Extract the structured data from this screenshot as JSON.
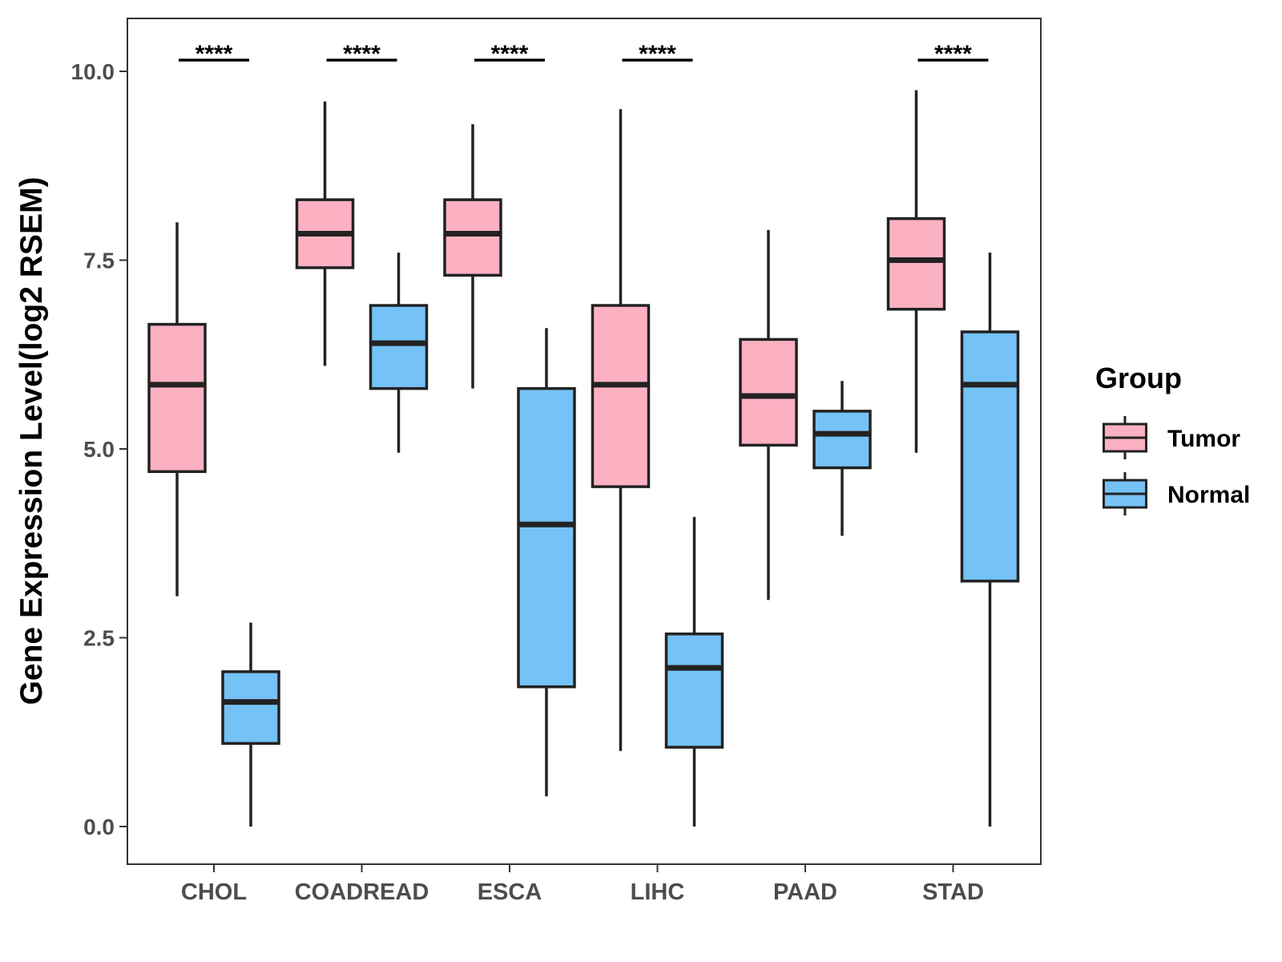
{
  "chart_data": {
    "type": "boxplot",
    "title": "",
    "xlabel": "",
    "ylabel": "Gene Expression Level(log2 RSEM)",
    "ylim": [
      -0.5,
      10.7
    ],
    "yticks": [
      0.0,
      2.5,
      5.0,
      7.5,
      10.0
    ],
    "ytick_labels": [
      "0.0",
      "2.5",
      "5.0",
      "7.5",
      "10.0"
    ],
    "categories": [
      "CHOL",
      "COADREAD",
      "ESCA",
      "LIHC",
      "PAAD",
      "STAD"
    ],
    "series": [
      {
        "name": "Tumor",
        "color": "#fcb1c3",
        "boxes": [
          {
            "min": 3.05,
            "q1": 4.7,
            "median": 5.85,
            "q3": 6.65,
            "max": 8.0
          },
          {
            "min": 6.1,
            "q1": 7.4,
            "median": 7.85,
            "q3": 8.3,
            "max": 9.6
          },
          {
            "min": 5.8,
            "q1": 7.3,
            "median": 7.85,
            "q3": 8.3,
            "max": 9.3
          },
          {
            "min": 1.0,
            "q1": 4.5,
            "median": 5.85,
            "q3": 6.9,
            "max": 9.5
          },
          {
            "min": 3.0,
            "q1": 5.05,
            "median": 5.7,
            "q3": 6.45,
            "max": 7.9
          },
          {
            "min": 4.95,
            "q1": 6.85,
            "median": 7.5,
            "q3": 8.05,
            "max": 9.75
          }
        ]
      },
      {
        "name": "Normal",
        "color": "#75c2f6",
        "boxes": [
          {
            "min": 0.0,
            "q1": 1.1,
            "median": 1.65,
            "q3": 2.05,
            "max": 2.7
          },
          {
            "min": 4.95,
            "q1": 5.8,
            "median": 6.4,
            "q3": 6.9,
            "max": 7.6
          },
          {
            "min": 0.4,
            "q1": 1.85,
            "median": 4.0,
            "q3": 5.8,
            "max": 6.6
          },
          {
            "min": 0.0,
            "q1": 1.05,
            "median": 2.1,
            "q3": 2.55,
            "max": 4.1
          },
          {
            "min": 3.85,
            "q1": 4.75,
            "median": 5.2,
            "q3": 5.5,
            "max": 5.9
          },
          {
            "min": 0.0,
            "q1": 3.25,
            "median": 5.85,
            "q3": 6.55,
            "max": 7.6
          }
        ]
      }
    ],
    "significance": [
      "****",
      "****",
      "****",
      "****",
      "",
      "****"
    ],
    "legend": {
      "title": "Group",
      "entries": [
        "Tumor",
        "Normal"
      ],
      "position": "right"
    }
  }
}
